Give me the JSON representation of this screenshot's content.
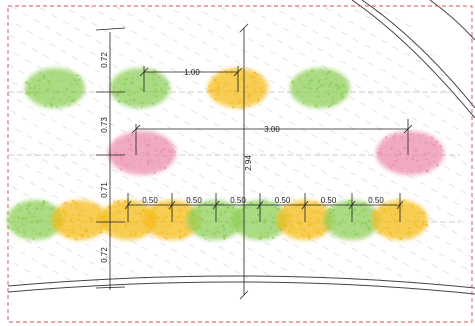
{
  "dimensions": {
    "spacing_top": "1.00",
    "spacing_pink": "3.00",
    "total_height": "2.94",
    "row_gap_1": "0.72",
    "row_gap_2": "0.73",
    "row_gap_3": "0.71",
    "row_gap_4": "0.72",
    "bottom_spacing": [
      "0.50",
      "0.50",
      "0.50",
      "0.50",
      "0.50",
      "0.50"
    ]
  },
  "plants": {
    "row1": [
      "green",
      "green",
      "yellow",
      "green"
    ],
    "row2": [
      "pink",
      "pink"
    ],
    "row3": [
      "green",
      "yellow",
      "yellow",
      "yellow",
      "green",
      "green",
      "yellow",
      "green",
      "yellow"
    ]
  },
  "colors": {
    "green": "#8fcf5a",
    "yellow": "#f5bd1f",
    "pink": "#ec8fb0",
    "boundary": "#e05050",
    "ink": "#222222",
    "hatch": "#bdbdbd"
  }
}
